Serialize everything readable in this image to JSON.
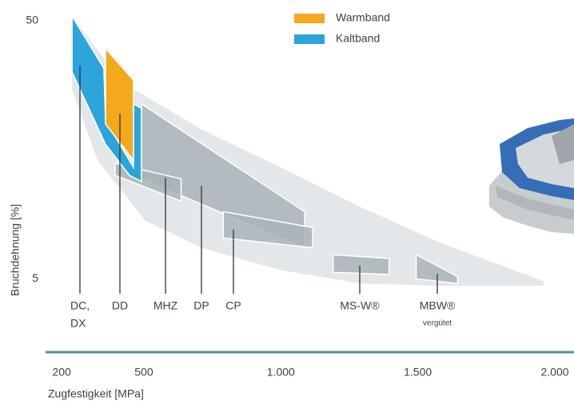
{
  "chart_data": {
    "type": "region",
    "xlabel": "Zugfestigkeit [MPa]",
    "ylabel": "Bruchdehnung [%]",
    "xlim": [
      150,
      2070
    ],
    "xticks": [
      200,
      500,
      {
        "value": 1000,
        "label": "1.000"
      },
      {
        "value": 1500,
        "label": "1.500"
      },
      {
        "value": 2000,
        "label": "2.000"
      }
    ],
    "ylim": [
      2.6,
      54
    ],
    "yticks": [
      5,
      50
    ],
    "ylog": true,
    "legend": [
      {
        "name": "Warmband",
        "color": "#f5a81c"
      },
      {
        "name": "Kaltband",
        "color": "#2ba5dc"
      }
    ],
    "envelope_color": "#e4e7e9",
    "envelope": [
      [
        238,
        52
      ],
      [
        418,
        29
      ],
      [
        709,
        19
      ],
      [
        1000,
        13.5
      ],
      [
        1290,
        9.5
      ],
      [
        1581,
        6.9
      ],
      [
        1959,
        4.9
      ],
      [
        1959,
        4.7
      ],
      [
        1581,
        4.7
      ],
      [
        1290,
        4.8
      ],
      [
        1000,
        5.4
      ],
      [
        709,
        6.6
      ],
      [
        505,
        8.4
      ],
      [
        331,
        14.4
      ],
      [
        238,
        27
      ]
    ],
    "regions": [
      {
        "label": [
          "DC,",
          "DX"
        ],
        "color": "#2ba5dc",
        "points": [
          [
            238,
            52
          ],
          [
            354,
            32.7
          ],
          [
            360,
            20.6
          ],
          [
            462,
            13.5
          ],
          [
            462,
            23.8
          ],
          [
            491,
            22.9
          ],
          [
            491,
            11.9
          ],
          [
            447,
            12.6
          ],
          [
            360,
            16.6
          ],
          [
            238,
            31.6
          ]
        ]
      },
      {
        "label": [
          "DD"
        ],
        "color": "#f5a81c",
        "points": [
          [
            360,
            39
          ],
          [
            462,
            29.4
          ],
          [
            462,
            14.4
          ],
          [
            360,
            19.9
          ]
        ]
      },
      {
        "label": [
          "MHZ"
        ],
        "color": "#a9b3b9",
        "points": [
          [
            395,
            14
          ],
          [
            636,
            12.2
          ],
          [
            636,
            10
          ],
          [
            395,
            12.6
          ]
        ]
      },
      {
        "label": [
          "DP"
        ],
        "color": "#a9b3b9",
        "points": [
          [
            491,
            23.8
          ],
          [
            1087,
            9.1
          ],
          [
            1087,
            6.6
          ],
          [
            491,
            12.2
          ]
        ]
      },
      {
        "label": [
          "CP"
        ],
        "color": "#a9b3b9",
        "points": [
          [
            790,
            9.1
          ],
          [
            1116,
            7.9
          ],
          [
            1116,
            6.6
          ],
          [
            790,
            7.2
          ]
        ]
      },
      {
        "label": [
          "MS-W®"
        ],
        "color": "#a9b3b9",
        "points": [
          [
            1191,
            6.2
          ],
          [
            1395,
            6.0
          ],
          [
            1395,
            5.2
          ],
          [
            1191,
            5.3
          ]
        ]
      },
      {
        "label": [
          "MBW®"
        ],
        "sublabel": "vergütet",
        "color": "#a9b3b9",
        "points": [
          [
            1494,
            6.2
          ],
          [
            1645,
            5.1
          ],
          [
            1645,
            4.8
          ],
          [
            1494,
            5.0
          ]
        ]
      }
    ]
  }
}
